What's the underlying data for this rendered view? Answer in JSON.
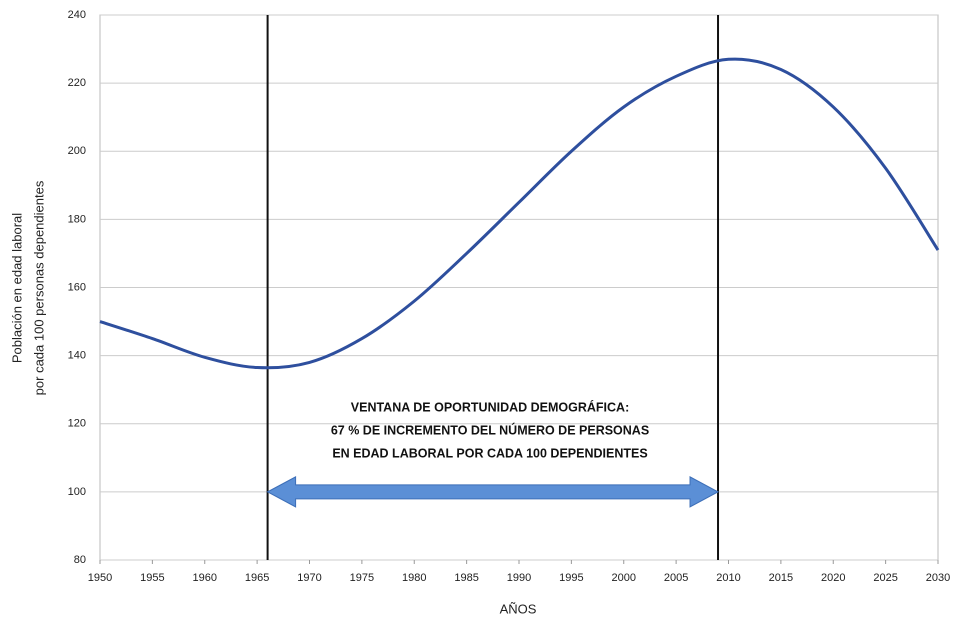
{
  "chart_data": {
    "type": "line",
    "ylabel": [
      "Población en edad laboral",
      "por cada 100 personas dependientes"
    ],
    "xlabel": "AÑOS",
    "x": [
      1950,
      1955,
      1960,
      1965,
      1970,
      1975,
      1980,
      1985,
      1990,
      1995,
      2000,
      2005,
      2010,
      2015,
      2020,
      2025,
      2030
    ],
    "series": [
      {
        "name": "Población en edad laboral por cada 100 personas dependientes",
        "color": "#2e4f9e",
        "values": [
          150,
          145,
          139.5,
          136.5,
          138,
          145,
          156,
          170,
          185,
          200,
          213,
          222,
          227,
          224,
          213,
          195,
          171
        ]
      }
    ],
    "xlim": [
      1950,
      2030
    ],
    "xticks": [
      1950,
      1955,
      1960,
      1965,
      1970,
      1975,
      1980,
      1985,
      1990,
      1995,
      2000,
      2005,
      2010,
      2015,
      2020,
      2025,
      2030
    ],
    "ylim": [
      80,
      240
    ],
    "yticks": [
      80,
      100,
      120,
      140,
      160,
      180,
      200,
      220,
      240
    ],
    "grid": true,
    "vlines": [
      1966,
      2009
    ],
    "arrow_y": 100,
    "arrow_color": "#5b8fd6",
    "annotation": [
      "VENTANA DE OPORTUNIDAD DEMOGRÁFICA:",
      "67 % DE INCREMENTO DEL NÚMERO DE PERSONAS",
      "EN EDAD LABORAL POR CADA 100 DEPENDIENTES"
    ]
  }
}
